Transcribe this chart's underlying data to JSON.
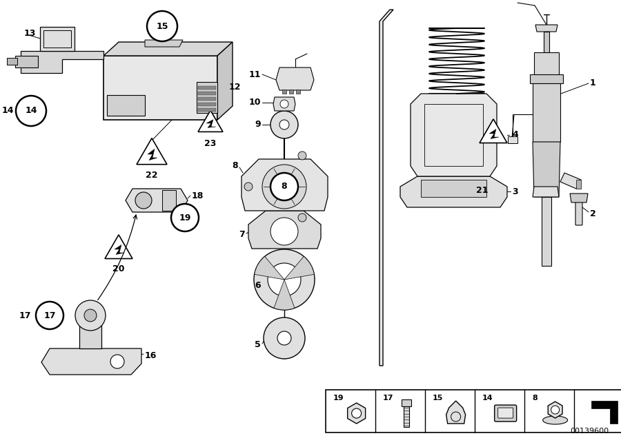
{
  "title": "",
  "bg_color": "#ffffff",
  "line_color": "#000000",
  "fig_width": 9.0,
  "fig_height": 6.36,
  "dpi": 100,
  "catalog_number": "00139600",
  "footer_items": [
    {
      "num": "19",
      "style": "nut_hex"
    },
    {
      "num": "17",
      "style": "bolt"
    },
    {
      "num": "15",
      "style": "nut_cap"
    },
    {
      "num": "14",
      "style": "clip"
    },
    {
      "num": "8",
      "style": "nut_flange"
    },
    {
      "num": "",
      "style": "arrow"
    }
  ]
}
